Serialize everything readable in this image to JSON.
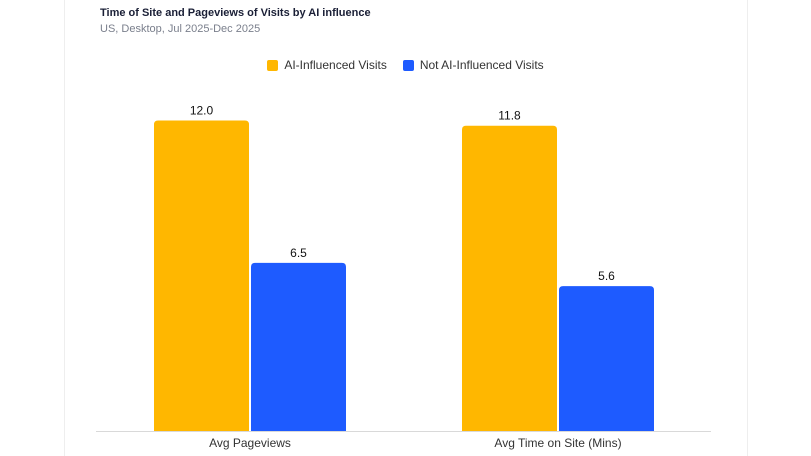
{
  "title": "Time of Site and Pageviews of Visits by AI influence",
  "subtitle": "US, Desktop, Jul 2025-Dec 2025",
  "colors": {
    "ai_influenced": "#FFB700",
    "not_ai_influenced": "#1E5BFF"
  },
  "legend": [
    {
      "label": "AI-Influenced Visits",
      "color": "#FFB700"
    },
    {
      "label": "Not AI-Influenced Visits",
      "color": "#1E5BFF"
    }
  ],
  "chart_data": {
    "type": "bar",
    "title": "Time of Site and Pageviews of Visits by AI influence",
    "subtitle": "US, Desktop, Jul 2025-Dec 2025",
    "categories": [
      "Avg Pageviews",
      "Avg Time on Site (Mins)"
    ],
    "series": [
      {
        "name": "AI-Influenced Visits",
        "values": [
          12.0,
          11.8
        ],
        "labels": [
          "12.0",
          "11.8"
        ]
      },
      {
        "name": "Not AI-Influenced Visits",
        "values": [
          6.5,
          5.6
        ],
        "labels": [
          "6.5",
          "5.6"
        ]
      }
    ],
    "xlabel": "",
    "ylabel": "",
    "ylim": [
      0,
      12.6
    ],
    "grid": false,
    "legend_position": "top-center",
    "data_labels": true
  }
}
